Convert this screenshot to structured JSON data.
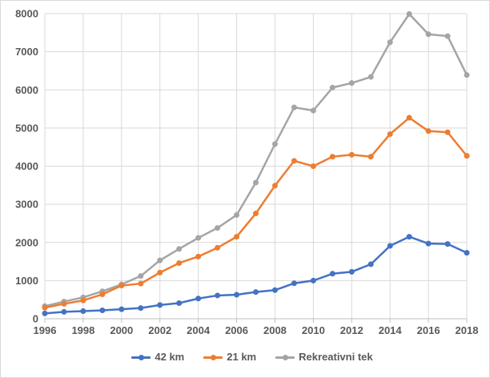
{
  "chart_data": {
    "type": "line",
    "title": "",
    "xlabel": "",
    "ylabel": "",
    "x": [
      1996,
      1997,
      1998,
      1999,
      2000,
      2001,
      2002,
      2003,
      2004,
      2005,
      2006,
      2007,
      2008,
      2009,
      2010,
      2011,
      2012,
      2013,
      2014,
      2015,
      2016,
      2017,
      2018
    ],
    "x_tick_labels": [
      "1996",
      "1998",
      "2000",
      "2002",
      "2004",
      "2006",
      "2008",
      "2010",
      "2012",
      "2014",
      "2016",
      "2018"
    ],
    "y_ticks": [
      0,
      1000,
      2000,
      3000,
      4000,
      5000,
      6000,
      7000,
      8000
    ],
    "ylim": [
      0,
      8000
    ],
    "grid": true,
    "legend_position": "bottom",
    "series": [
      {
        "name": "42 km",
        "color": "#4472C4",
        "values": [
          140,
          180,
          200,
          220,
          250,
          280,
          360,
          410,
          530,
          610,
          630,
          700,
          750,
          930,
          1000,
          1180,
          1230,
          1430,
          1910,
          2150,
          1970,
          1960,
          1730
        ]
      },
      {
        "name": "21 km",
        "color": "#ED7D31",
        "values": [
          290,
          390,
          480,
          640,
          870,
          920,
          1210,
          1460,
          1630,
          1860,
          2150,
          2760,
          3490,
          4140,
          4000,
          4250,
          4300,
          4250,
          4840,
          5270,
          4920,
          4890,
          4270
        ]
      },
      {
        "name": "Rekreativni tek",
        "color": "#A5A5A5",
        "values": [
          330,
          450,
          560,
          720,
          900,
          1120,
          1530,
          1830,
          2120,
          2380,
          2720,
          3570,
          4580,
          5540,
          5460,
          6060,
          6180,
          6340,
          7250,
          7990,
          7460,
          7410,
          6390
        ]
      }
    ]
  },
  "colors": {
    "background": "#FFFFFF",
    "frame_border": "#D9D9D9",
    "gridline": "#D9D9D9",
    "axis_line": "#BFBFBF",
    "tick_label": "#595959",
    "legend_text": "#595959"
  }
}
